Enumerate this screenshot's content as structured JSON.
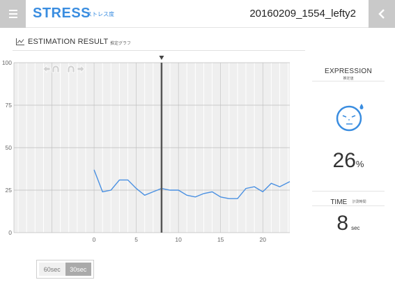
{
  "header": {
    "title": "STRESS",
    "subtitle": "ストレス度",
    "file_name": "20160209_1554_lefty2",
    "menu_icon": "hamburger-icon",
    "back_icon": "chevron-left-icon"
  },
  "section": {
    "title": "ESTIMATION RESULT",
    "subtitle": "推定グラフ",
    "icon": "line-graph-icon"
  },
  "panel": {
    "expression_title": "EXPRESSION",
    "expression_sub": "推定値",
    "face_icon": "stressed-face-icon",
    "percent_value": "26",
    "percent_unit": "%",
    "time_title": "TIME",
    "time_sub": "計測時間",
    "time_value": "8",
    "time_unit": "sec"
  },
  "range": {
    "option_60": "60sec",
    "option_30": "30sec",
    "selected": "30sec"
  },
  "colors": {
    "accent": "#3a8de0",
    "button_gray": "#c9c9c9",
    "chart_bg": "#efefef"
  },
  "chart_data": {
    "type": "line",
    "x_ticks": [
      0,
      5,
      10,
      15,
      20
    ],
    "y_ticks": [
      0,
      25,
      50,
      75,
      100
    ],
    "xlim": [
      -9.5,
      23.2
    ],
    "ylim": [
      0,
      100
    ],
    "cursor_x": 8,
    "title": "",
    "xlabel": "",
    "ylabel": "",
    "series": [
      {
        "x": [
          0,
          1,
          2,
          3,
          4,
          5,
          6,
          7,
          8,
          9,
          10,
          11,
          12,
          13,
          14,
          15,
          16,
          17,
          18,
          19,
          20,
          21,
          22,
          23.2
        ],
        "values": [
          37,
          24,
          25,
          31,
          31,
          26,
          22,
          24,
          26,
          25,
          25,
          22,
          21,
          23,
          24,
          21,
          20,
          20,
          26,
          27,
          24,
          29,
          27,
          30
        ]
      }
    ]
  }
}
